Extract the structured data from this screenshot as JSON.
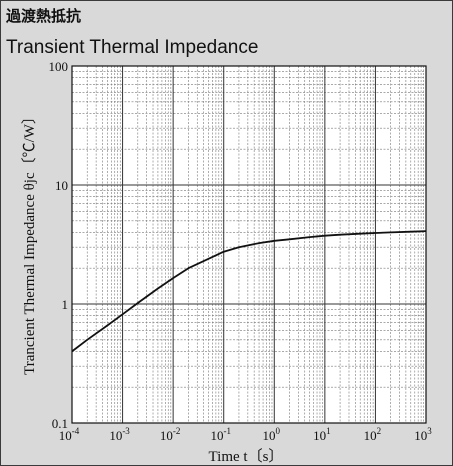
{
  "header": {
    "title_jp": "過渡熱抵抗",
    "title_en": "Transient Thermal Impedance"
  },
  "chart_data": {
    "type": "line",
    "title": "Transient Thermal Impedance",
    "xlabel": "Time  t〔s〕",
    "ylabel": "Trancient Thermal Impedance  θjc〔℃/W〕",
    "x_scale": "log",
    "y_scale": "log",
    "xlim": [
      0.0001,
      1000
    ],
    "ylim": [
      0.1,
      100
    ],
    "x_tick_labels": [
      {
        "base": "10",
        "exp": "-4"
      },
      {
        "base": "10",
        "exp": "-3"
      },
      {
        "base": "10",
        "exp": "-2"
      },
      {
        "base": "10",
        "exp": "-1"
      },
      {
        "base": "10",
        "exp": "0"
      },
      {
        "base": "10",
        "exp": "1"
      },
      {
        "base": "10",
        "exp": "2"
      },
      {
        "base": "10",
        "exp": "3"
      }
    ],
    "y_tick_labels": [
      "100",
      "10",
      "1",
      "0.1"
    ],
    "grid": true,
    "series": [
      {
        "x": [
          0.0001,
          0.0002,
          0.0005,
          0.001,
          0.002,
          0.005,
          0.01,
          0.02,
          0.05,
          0.1,
          0.2,
          0.5,
          1,
          2,
          5,
          10,
          20,
          50,
          100,
          200,
          500,
          1000
        ],
        "y": [
          0.4,
          0.5,
          0.66,
          0.82,
          1.02,
          1.35,
          1.65,
          2.0,
          2.4,
          2.75,
          3.0,
          3.25,
          3.4,
          3.5,
          3.65,
          3.75,
          3.82,
          3.9,
          3.95,
          4.0,
          4.05,
          4.1
        ]
      }
    ],
    "colors": {
      "line": "#111111",
      "grid_major": "#333333",
      "grid_minor": "#777777",
      "panel": "#ffffff",
      "background": "#d9d9d9"
    }
  }
}
